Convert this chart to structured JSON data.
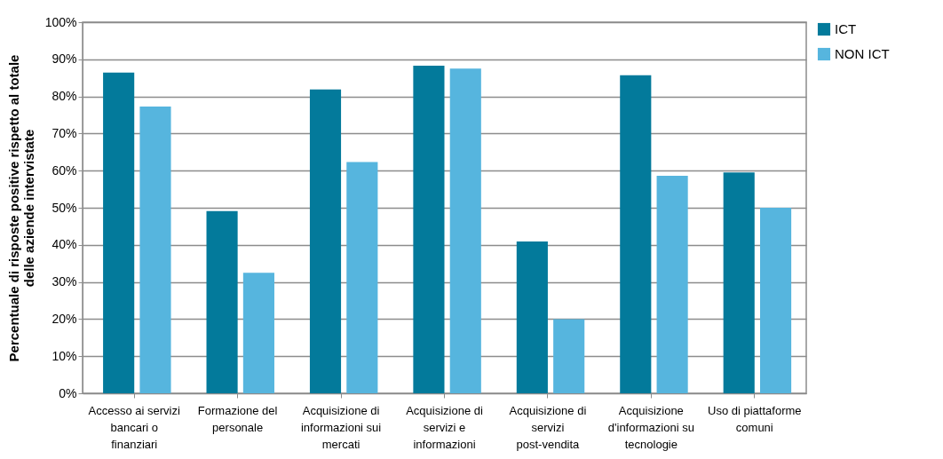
{
  "chart_data": {
    "type": "bar",
    "ylabel": "Percentuale di risposte positive rispetto al totale delle aziende intervistate",
    "categories": [
      "Accesso ai servizi bancari o finanziari",
      "Formazione del personale",
      "Acquisizione di informazioni sui mercati",
      "Acquisizione di servizi e informazioni",
      "Acquisizione di servizi post-vendita",
      "Acquisizione d'informazioni su tecnologie",
      "Uso di piattaforme comuni"
    ],
    "series": [
      {
        "name": "ICT",
        "color": "#037a9b",
        "values": [
          86.4,
          49.1,
          81.9,
          88.3,
          40.9,
          85.7,
          59.5
        ]
      },
      {
        "name": "NON ICT",
        "color": "#56b5de",
        "values": [
          77.3,
          32.5,
          62.3,
          87.5,
          20.0,
          58.6,
          50.0
        ]
      }
    ],
    "ylim": [
      0,
      100
    ],
    "yticks": [
      {
        "value": 0,
        "label": "0%"
      },
      {
        "value": 10,
        "label": "10%"
      },
      {
        "value": 20,
        "label": "20%"
      },
      {
        "value": 30,
        "label": "30%"
      },
      {
        "value": 40,
        "label": "40%"
      },
      {
        "value": 50,
        "label": "50%"
      },
      {
        "value": 60,
        "label": "60%"
      },
      {
        "value": 70,
        "label": "70%"
      },
      {
        "value": 80,
        "label": "80%"
      },
      {
        "value": 90,
        "label": "90%"
      },
      {
        "value": 100,
        "label": "100%"
      }
    ],
    "grid": "y",
    "legend": "right"
  }
}
